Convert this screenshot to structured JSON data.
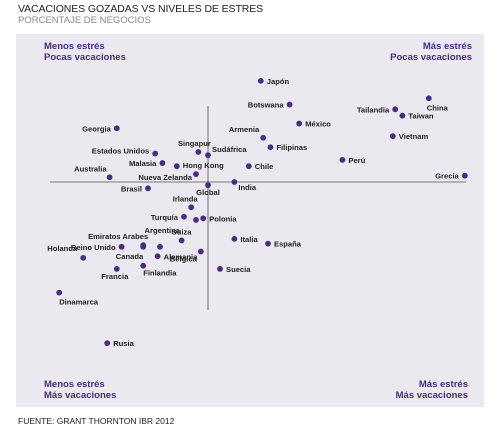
{
  "title": "VACACIONES GOZADAS VS NIVELES DE ESTRES",
  "subtitle": "PORCENTAJE DE NEGOCIOS",
  "source": "FUENTE: GRANT THORNTON IBR 2012",
  "colors": {
    "panel": "#e9e9ef",
    "point": "#4b2c7f",
    "quadrant_label": "#4b2c7f",
    "axis": "#555555",
    "label": "#222222"
  },
  "chart_data": {
    "type": "scatter",
    "title": "VACACIONES GOZADAS VS NIVELES DE ESTRES",
    "subtitle": "PORCENTAJE DE NEGOCIOS",
    "xlabel": "",
    "ylabel": "",
    "xlim": [
      -1,
      1
    ],
    "ylim": [
      -1,
      1
    ],
    "grid": false,
    "legend": "none",
    "axes": "centered crosshair",
    "quadrants": {
      "top_left": [
        "Menos estrés",
        "Pocas vacaciones"
      ],
      "top_right": [
        "Más estrés",
        "Pocas vacaciones"
      ],
      "bottom_left": [
        "Menos estrés",
        "Más vacaciones"
      ],
      "bottom_right": [
        "Más estrés",
        "Más vacaciones"
      ]
    },
    "points": [
      {
        "label": "Japón",
        "x": 0.22,
        "y": 0.64
      },
      {
        "label": "Botswana",
        "x": 0.34,
        "y": 0.49
      },
      {
        "label": "China",
        "x": 0.92,
        "y": 0.53
      },
      {
        "label": "Tailandia",
        "x": 0.78,
        "y": 0.46
      },
      {
        "label": "Taiwan",
        "x": 0.81,
        "y": 0.42
      },
      {
        "label": "Armenia",
        "x": 0.23,
        "y": 0.28
      },
      {
        "label": "México",
        "x": 0.38,
        "y": 0.37
      },
      {
        "label": "Vietnam",
        "x": 0.77,
        "y": 0.29
      },
      {
        "label": "Georgia",
        "x": -0.38,
        "y": 0.34
      },
      {
        "label": "Singapur",
        "x": -0.04,
        "y": 0.19
      },
      {
        "label": "Sudáfrica",
        "x": 0.0,
        "y": 0.17
      },
      {
        "label": "Filipinas",
        "x": 0.26,
        "y": 0.22
      },
      {
        "label": "Estados Unidos",
        "x": -0.22,
        "y": 0.18
      },
      {
        "label": "Malasia",
        "x": -0.19,
        "y": 0.12
      },
      {
        "label": "Hong Kong",
        "x": -0.13,
        "y": 0.1
      },
      {
        "label": "Chile",
        "x": 0.17,
        "y": 0.1
      },
      {
        "label": "Perú",
        "x": 0.56,
        "y": 0.14
      },
      {
        "label": "Australia",
        "x": -0.41,
        "y": 0.03
      },
      {
        "label": "Nueva Zelanda",
        "x": -0.05,
        "y": 0.05
      },
      {
        "label": "Grecia",
        "x": 1.07,
        "y": 0.04
      },
      {
        "label": "Brasil",
        "x": -0.25,
        "y": -0.04
      },
      {
        "label": "Global",
        "x": 0.0,
        "y": -0.02
      },
      {
        "label": "India",
        "x": 0.11,
        "y": 0.0
      },
      {
        "label": "Irlanda",
        "x": -0.07,
        "y": -0.16
      },
      {
        "label": "Turquía",
        "x": -0.1,
        "y": -0.22
      },
      {
        "label": "Argentina",
        "x": -0.05,
        "y": -0.24
      },
      {
        "label": "Polonia",
        "x": -0.02,
        "y": -0.23
      },
      {
        "label": "Emiratos Arabes",
        "x": -0.27,
        "y": -0.4
      },
      {
        "label": "Suiza",
        "x": -0.11,
        "y": -0.37
      },
      {
        "label": "Italia",
        "x": 0.11,
        "y": -0.36
      },
      {
        "label": "Reino Unido",
        "x": -0.36,
        "y": -0.41
      },
      {
        "label": "Canada",
        "x": -0.27,
        "y": -0.41
      },
      {
        "label": "Bélgica",
        "x": -0.2,
        "y": -0.41
      },
      {
        "label": "España",
        "x": 0.25,
        "y": -0.39
      },
      {
        "label": "Holanda",
        "x": -0.52,
        "y": -0.48
      },
      {
        "label": "Bélgica",
        "x": -0.03,
        "y": -0.44
      },
      {
        "label": "Alemania",
        "x": -0.21,
        "y": -0.47
      },
      {
        "label": "Francia",
        "x": -0.38,
        "y": -0.55
      },
      {
        "label": "Finlandia",
        "x": -0.27,
        "y": -0.53
      },
      {
        "label": "Suecia",
        "x": 0.05,
        "y": -0.55
      },
      {
        "label": "Dinamarca",
        "x": -0.62,
        "y": -0.7
      },
      {
        "label": "Rusia",
        "x": -0.42,
        "y": -1.02
      }
    ]
  }
}
